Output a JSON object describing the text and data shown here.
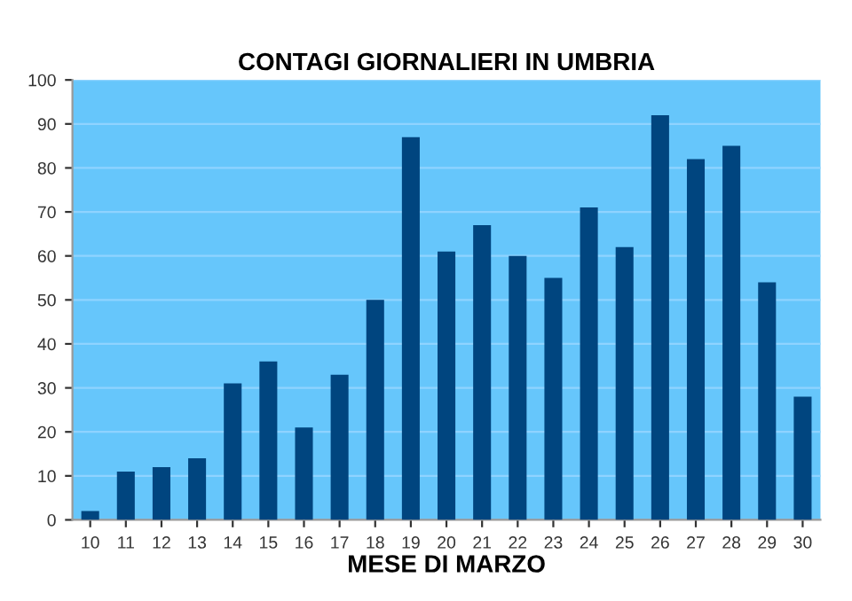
{
  "chart_data": {
    "type": "bar",
    "title": "CONTAGI GIORNALIERI IN UMBRIA",
    "xlabel": "MESE DI MARZO",
    "categories": [
      "10",
      "11",
      "12",
      "13",
      "14",
      "15",
      "16",
      "17",
      "18",
      "19",
      "20",
      "21",
      "22",
      "23",
      "24",
      "25",
      "26",
      "27",
      "28",
      "29",
      "30"
    ],
    "values": [
      2,
      11,
      12,
      14,
      31,
      36,
      21,
      33,
      50,
      87,
      61,
      67,
      60,
      55,
      71,
      62,
      92,
      82,
      85,
      54,
      28
    ],
    "color": "#00457f",
    "ylim": [
      0,
      100
    ],
    "yticks": [
      0,
      10,
      20,
      30,
      40,
      50,
      60,
      70,
      80,
      90,
      100
    ],
    "grid": "y"
  }
}
